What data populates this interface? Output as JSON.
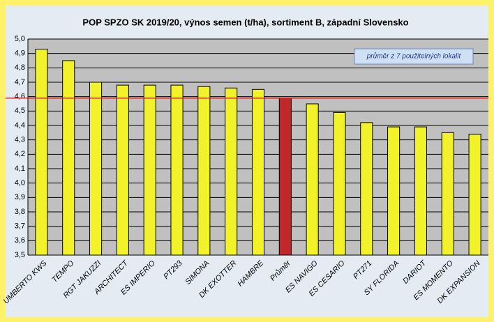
{
  "chart_data": {
    "type": "bar",
    "title": "POP SPZO SK 2019/20, výnos semen (t/ha), sortiment B, západní Slovensko",
    "categories": [
      "UMBERTO KWS",
      "TEMPO",
      "RGT JAKUZZI",
      "ARCHITECT",
      "ES IMPERIO",
      "PT293",
      "SIMONA",
      "DK EXOTTER",
      "HAMBRE",
      "Průměr",
      "ES NAVIGO",
      "ES CESARIO",
      "PT271",
      "SY FLORIDA",
      "DARIOT",
      "ES MOMENTO",
      "DK EXPANSION"
    ],
    "values": [
      4.93,
      4.85,
      4.7,
      4.68,
      4.68,
      4.68,
      4.67,
      4.66,
      4.65,
      4.59,
      4.55,
      4.49,
      4.42,
      4.39,
      4.39,
      4.35,
      4.34
    ],
    "colors": [
      "#f2f22a",
      "#f2f22a",
      "#f2f22a",
      "#f2f22a",
      "#f2f22a",
      "#f2f22a",
      "#f2f22a",
      "#f2f22a",
      "#f2f22a",
      "#c0282a",
      "#f2f22a",
      "#f2f22a",
      "#f2f22a",
      "#f2f22a",
      "#f2f22a",
      "#f2f22a",
      "#f2f22a"
    ],
    "ylim": [
      3.5,
      5.0
    ],
    "yticks": [
      {
        "value": 3.5,
        "label": "3,5"
      },
      {
        "value": 3.6,
        "label": "3,6"
      },
      {
        "value": 3.7,
        "label": "3,7"
      },
      {
        "value": 3.8,
        "label": "3,8"
      },
      {
        "value": 3.9,
        "label": "3,9"
      },
      {
        "value": 4.0,
        "label": "4,0"
      },
      {
        "value": 4.1,
        "label": "4,1"
      },
      {
        "value": 4.2,
        "label": "4,2"
      },
      {
        "value": 4.3,
        "label": "4,3"
      },
      {
        "value": 4.4,
        "label": "4,4"
      },
      {
        "value": 4.5,
        "label": "4,5"
      },
      {
        "value": 4.6,
        "label": "4,6"
      },
      {
        "value": 4.7,
        "label": "4,7"
      },
      {
        "value": 4.8,
        "label": "4,8"
      },
      {
        "value": 4.9,
        "label": "4,9"
      },
      {
        "value": 5.0,
        "label": "5,0"
      }
    ],
    "grid": true,
    "reference_line": {
      "value": 4.59,
      "color": "#e02020"
    },
    "annotation": "průměr z 7 použitelných lokalit"
  }
}
